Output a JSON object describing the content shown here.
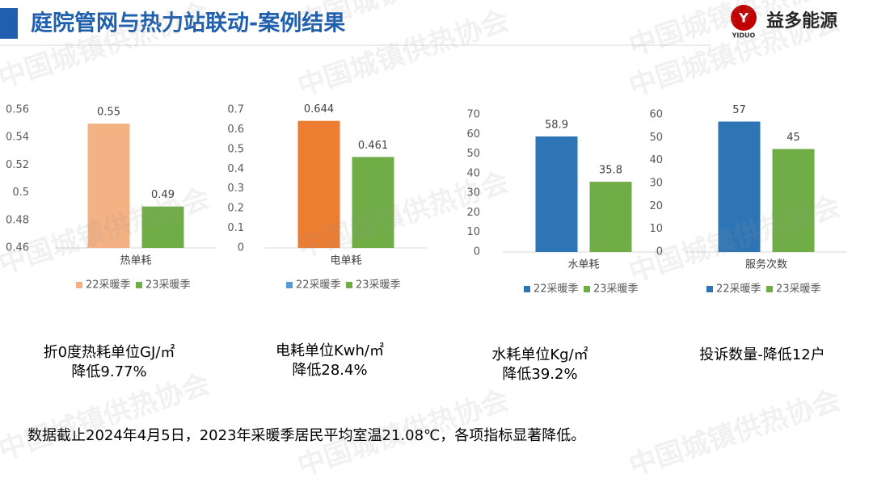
{
  "header": {
    "title": "庭院管网与热力站联动-案例结果",
    "brand": "益多能源",
    "logo_text": "YIDUO"
  },
  "chart_data": [
    {
      "type": "bar",
      "categories": [
        "热单耗"
      ],
      "ylim": [
        0.46,
        0.56
      ],
      "yticks": [
        0.46,
        0.48,
        0.5,
        0.52,
        0.54,
        0.56
      ],
      "series": [
        {
          "name": "22采暖季",
          "color": "#f4b183",
          "legend_color": "#f4b183",
          "values": [
            0.55
          ]
        },
        {
          "name": "23采暖季",
          "color": "#70ad47",
          "legend_color": "#70ad47",
          "values": [
            0.49
          ]
        }
      ]
    },
    {
      "type": "bar",
      "categories": [
        "电单耗"
      ],
      "ylim": [
        0,
        0.7
      ],
      "yticks": [
        0,
        0.1,
        0.2,
        0.3,
        0.4,
        0.5,
        0.6,
        0.7
      ],
      "series": [
        {
          "name": "22采暖季",
          "color": "#ed7d31",
          "legend_color": "#5b9bd5",
          "values": [
            0.644
          ]
        },
        {
          "name": "23采暖季",
          "color": "#70ad47",
          "legend_color": "#70ad47",
          "values": [
            0.461
          ]
        }
      ]
    },
    {
      "type": "bar",
      "categories": [
        "水单耗"
      ],
      "ylim": [
        0,
        70
      ],
      "yticks": [
        0,
        10,
        20,
        30,
        40,
        50,
        60,
        70
      ],
      "series": [
        {
          "name": "22采暖季",
          "color": "#2e75b6",
          "legend_color": "#2e75b6",
          "values": [
            58.9
          ]
        },
        {
          "name": "23采暖季",
          "color": "#70ad47",
          "legend_color": "#70ad47",
          "values": [
            35.8
          ]
        }
      ]
    },
    {
      "type": "bar",
      "categories": [
        "服务次数"
      ],
      "ylim": [
        0,
        60
      ],
      "yticks": [
        0,
        10,
        20,
        30,
        40,
        50,
        60
      ],
      "series": [
        {
          "name": "22采暖季",
          "color": "#2e75b6",
          "legend_color": "#2e75b6",
          "values": [
            57
          ]
        },
        {
          "name": "23采暖季",
          "color": "#70ad47",
          "legend_color": "#70ad47",
          "values": [
            45
          ]
        }
      ]
    }
  ],
  "captions": [
    [
      "折0度热耗单位GJ/㎡",
      "降低9.77%"
    ],
    [
      "电耗单位Kwh/㎡",
      "降低28.4%"
    ],
    [
      "水耗单位Kg/㎡",
      "降低39.2%"
    ],
    [
      "投诉数量-降低12户"
    ]
  ],
  "footnote": "数据截止2024年4月5日，2023年采暖季居民平均室温21.08℃，各项指标显著降低。",
  "watermark": "中国城镇供热协会"
}
